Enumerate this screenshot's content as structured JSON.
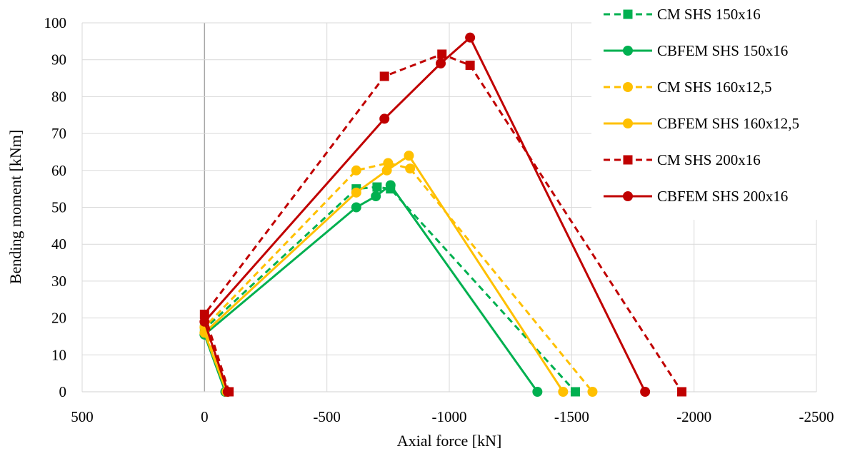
{
  "chart_data": {
    "type": "line",
    "title": "",
    "xlabel": "Axial force [kN]",
    "ylabel": "Bending moment [kNm]",
    "xlim": [
      500,
      -2500
    ],
    "ylim": [
      0,
      100
    ],
    "x_ticks": [
      500,
      0,
      -500,
      -1000,
      -1500,
      -2000,
      -2500
    ],
    "x_tick_labels": [
      "500",
      "0",
      "-500",
      "-1000",
      "-1500",
      "-2000",
      "-2500"
    ],
    "y_ticks": [
      0,
      10,
      20,
      30,
      40,
      50,
      60,
      70,
      80,
      90,
      100
    ],
    "y_tick_labels": [
      "0",
      "10",
      "20",
      "30",
      "40",
      "50",
      "60",
      "70",
      "80",
      "90",
      "100"
    ],
    "grid": true,
    "legend_position": "top-right",
    "series": [
      {
        "name": "CM SHS 150x16",
        "color": "#00b050",
        "dash": "dashed",
        "marker": "square",
        "points": [
          [
            -95,
            0
          ],
          [
            0,
            17
          ],
          [
            -620,
            55
          ],
          [
            -705,
            55.5
          ],
          [
            -760,
            55
          ],
          [
            -1515,
            0
          ]
        ]
      },
      {
        "name": "CBFEM SHS 150x16",
        "color": "#00b050",
        "dash": "solid",
        "marker": "circle",
        "points": [
          [
            -85,
            0
          ],
          [
            0,
            15.5
          ],
          [
            -620,
            50
          ],
          [
            -700,
            53
          ],
          [
            -760,
            56
          ],
          [
            -1360,
            0
          ]
        ]
      },
      {
        "name": "CM SHS 160x12,5",
        "color": "#ffc000",
        "dash": "dashed",
        "marker": "circle",
        "points": [
          [
            -95,
            0
          ],
          [
            0,
            17.5
          ],
          [
            -620,
            60
          ],
          [
            -750,
            62
          ],
          [
            -840,
            60.5
          ],
          [
            -1585,
            0
          ]
        ]
      },
      {
        "name": "CBFEM SHS 160x12,5",
        "color": "#ffc000",
        "dash": "solid",
        "marker": "circle",
        "points": [
          [
            -90,
            0
          ],
          [
            0,
            16
          ],
          [
            -620,
            54
          ],
          [
            -745,
            60
          ],
          [
            -835,
            64
          ],
          [
            -1465,
            0
          ]
        ]
      },
      {
        "name": "CM SHS 200x16",
        "color": "#c00000",
        "dash": "dashed",
        "marker": "square",
        "points": [
          [
            -100,
            0
          ],
          [
            0,
            21
          ],
          [
            -735,
            85.5
          ],
          [
            -970,
            91.5
          ],
          [
            -1085,
            88.5
          ],
          [
            -1950,
            0
          ]
        ]
      },
      {
        "name": "CBFEM SHS 200x16",
        "color": "#c00000",
        "dash": "solid",
        "marker": "circle",
        "points": [
          [
            -95,
            0
          ],
          [
            0,
            19
          ],
          [
            -735,
            74
          ],
          [
            -965,
            89
          ],
          [
            -1085,
            96
          ],
          [
            -1800,
            0
          ]
        ]
      }
    ]
  }
}
